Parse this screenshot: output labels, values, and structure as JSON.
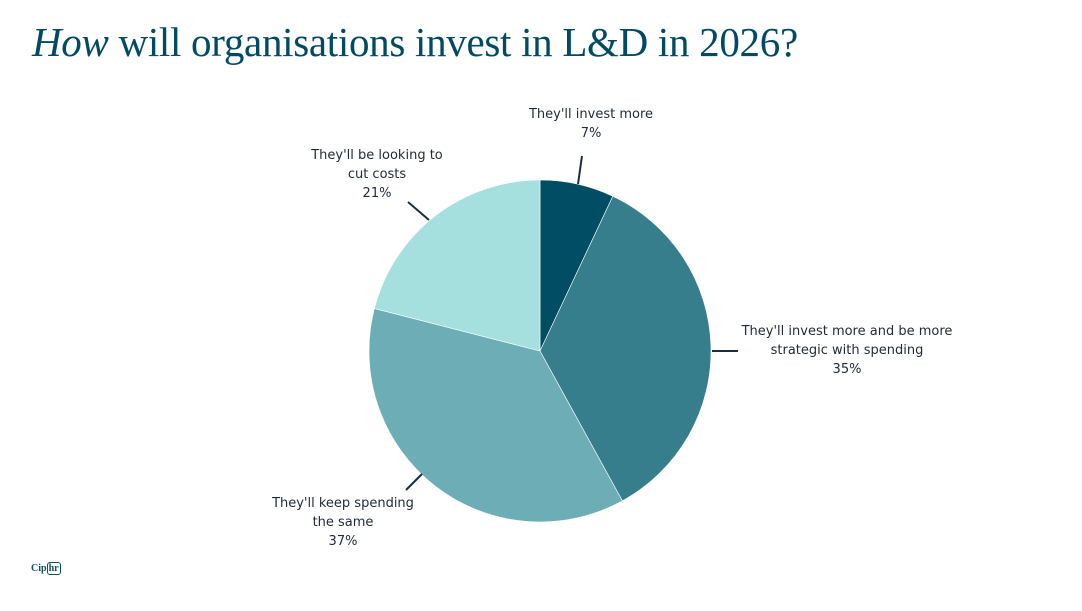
{
  "header": {
    "title_emphasis": "How",
    "title_rest": " will organisations invest in L&D in 2026?"
  },
  "logo": {
    "text_a": "Cip",
    "text_b": "hr"
  },
  "chart_data": {
    "type": "pie",
    "title": "How will organisations invest in L&D in 2026?",
    "start_angle": "12 o'clock",
    "direction": "clockwise",
    "legend": "none (data labels with leader lines)",
    "slices": [
      {
        "label_lines": [
          "They'll invest more"
        ],
        "label": "They'll invest more",
        "value": 7,
        "value_label": "7%",
        "color": "#004d64"
      },
      {
        "label_lines": [
          "They'll invest more and be more",
          "strategic with spending"
        ],
        "label": "They'll invest more and be more strategic with spending",
        "value": 35,
        "value_label": "35%",
        "color": "#377e8c"
      },
      {
        "label_lines": [
          "They'll keep spending",
          "the same"
        ],
        "label": "They'll keep spending the same",
        "value": 37,
        "value_label": "37%",
        "color": "#6daeb6"
      },
      {
        "label_lines": [
          "They'll be looking to",
          "cut costs"
        ],
        "label": "They'll be looking to cut costs",
        "value": 21,
        "value_label": "21%",
        "color": "#a5e0df"
      }
    ]
  }
}
